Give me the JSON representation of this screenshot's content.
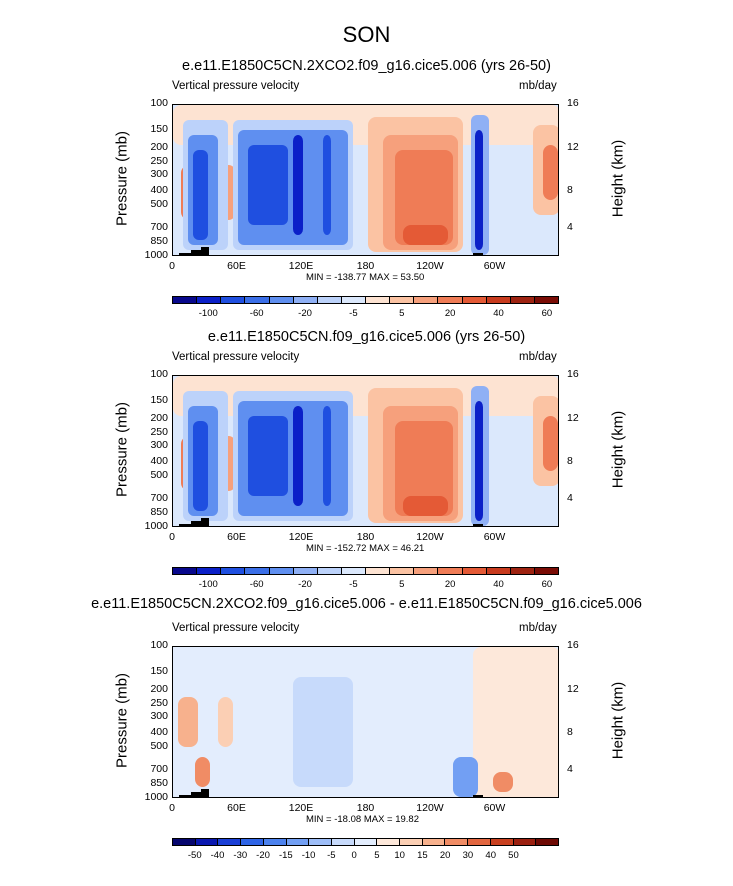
{
  "title": "SON",
  "y_ticks": [
    "100",
    "150",
    "200",
    "250",
    "300",
    "400",
    "500",
    "700",
    "850",
    "1000"
  ],
  "y_label": "Pressure (mb)",
  "y2_ticks": [
    "16",
    "12",
    "8",
    "4"
  ],
  "y2_label": "Height (km)",
  "x_ticks": [
    "0",
    "60E",
    "120E",
    "180",
    "120W",
    "60W"
  ],
  "panels": [
    {
      "title": "e.e11.E1850C5CN.2XCO2.f09_g16.cice5.006 (yrs 26-50)",
      "left_label": "Vertical pressure velocity",
      "right_label": "mb/day",
      "stats": "MIN = -138.77  MAX =  53.50",
      "colorbar_labels": [
        "-100",
        "-60",
        "-20",
        "-5",
        "5",
        "20",
        "40",
        "60"
      ]
    },
    {
      "title": "e.e11.E1850C5CN.f09_g16.cice5.006 (yrs 26-50)",
      "left_label": "Vertical pressure velocity",
      "right_label": "mb/day",
      "stats": "MIN = -152.72  MAX =  46.21",
      "colorbar_labels": [
        "-100",
        "-60",
        "-20",
        "-5",
        "5",
        "20",
        "40",
        "60"
      ]
    },
    {
      "title": "e.e11.E1850C5CN.2XCO2.f09_g16.cice5.006 - e.e11.E1850C5CN.f09_g16.cice5.006",
      "left_label": "Vertical pressure velocity",
      "right_label": "mb/day",
      "stats": "MIN = -18.08  MAX =  19.82",
      "colorbar_labels": [
        "-50",
        "-40",
        "-30",
        "-20",
        "-15",
        "-10",
        "-5",
        "0",
        "5",
        "10",
        "15",
        "20",
        "30",
        "40",
        "50"
      ]
    }
  ],
  "colors": {
    "abs_scale": [
      "#08088c",
      "#0b20c8",
      "#1f4fe0",
      "#3b6fe8",
      "#5f8ff0",
      "#8fb0f5",
      "#bcd2fa",
      "#dbe8fc",
      "#fde3d2",
      "#fbc3a3",
      "#f6a07c",
      "#ef7c56",
      "#e45a36",
      "#c83b1e",
      "#9e2311",
      "#7a0c05"
    ],
    "diff_scale": [
      "#06066e",
      "#0a18b0",
      "#1a3fd6",
      "#2e64e6",
      "#4c82ee",
      "#729ff3",
      "#9dbdf7",
      "#c7dafb",
      "#e3edfd",
      "#fde8da",
      "#fbcfb4",
      "#f7b18d",
      "#f08c65",
      "#e26640",
      "#c8401f",
      "#9b2010",
      "#6e0a04"
    ]
  }
}
